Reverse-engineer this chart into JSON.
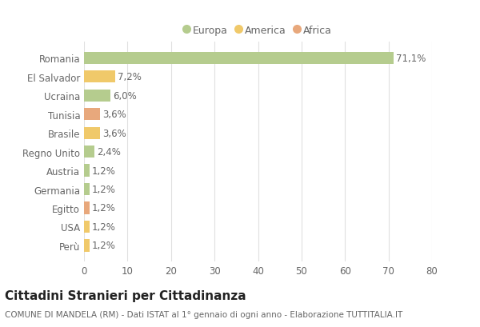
{
  "countries": [
    "Romania",
    "El Salvador",
    "Ucraina",
    "Tunisia",
    "Brasile",
    "Regno Unito",
    "Austria",
    "Germania",
    "Egitto",
    "USA",
    "Perù"
  ],
  "values": [
    71.1,
    7.2,
    6.0,
    3.6,
    3.6,
    2.4,
    1.2,
    1.2,
    1.2,
    1.2,
    1.2
  ],
  "labels": [
    "71,1%",
    "7,2%",
    "6,0%",
    "3,6%",
    "3,6%",
    "2,4%",
    "1,2%",
    "1,2%",
    "1,2%",
    "1,2%",
    "1,2%"
  ],
  "continents": [
    "Europa",
    "America",
    "Europa",
    "Africa",
    "America",
    "Europa",
    "Europa",
    "Europa",
    "Africa",
    "America",
    "America"
  ],
  "colors": {
    "Europa": "#b5cc8e",
    "America": "#f0c96a",
    "Africa": "#e8a87c"
  },
  "xlim": [
    0,
    80
  ],
  "xticks": [
    0,
    10,
    20,
    30,
    40,
    50,
    60,
    70,
    80
  ],
  "title": "Cittadini Stranieri per Cittadinanza",
  "subtitle": "COMUNE DI MANDELA (RM) - Dati ISTAT al 1° gennaio di ogni anno - Elaborazione TUTTITALIA.IT",
  "bg_color": "#ffffff",
  "grid_color": "#e0e0e0",
  "legend_items": [
    "Europa",
    "America",
    "Africa"
  ],
  "legend_colors": [
    "#b5cc8e",
    "#f0c96a",
    "#e8a87c"
  ],
  "bar_height": 0.65,
  "label_fontsize": 8.5,
  "tick_fontsize": 8.5,
  "title_fontsize": 11,
  "subtitle_fontsize": 7.5
}
